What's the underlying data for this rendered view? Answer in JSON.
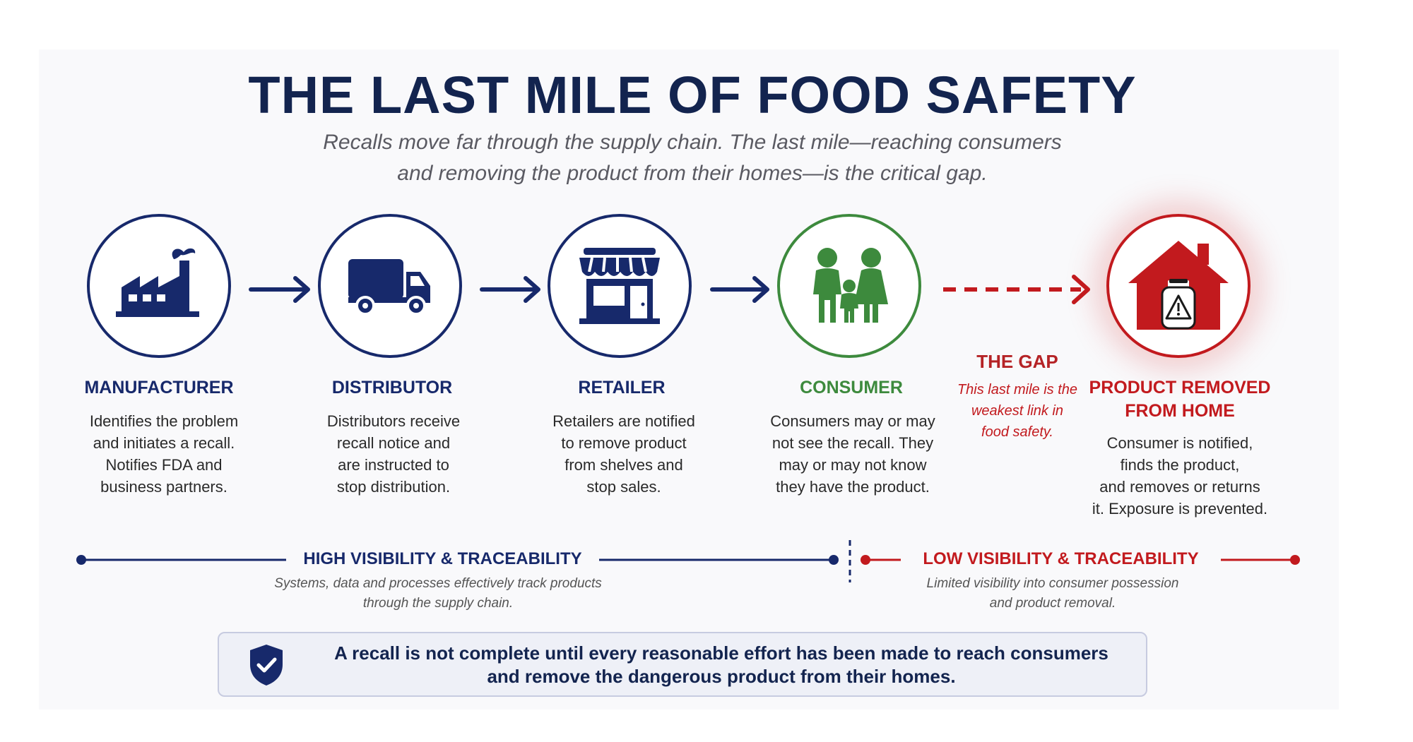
{
  "header": {
    "title": "THE LAST MILE OF FOOD SAFETY",
    "subtitle_line1": "Recalls move far through the supply chain. The last mile—reaching consumers",
    "subtitle_line2": "and removing the product from their homes—is the critical gap."
  },
  "steps": [
    {
      "title": "MANUFACTURER",
      "icon": "factory-icon",
      "lines": [
        "Identifies the problem",
        "and initiates a recall.",
        "Notifies FDA and",
        "business partners."
      ]
    },
    {
      "title": "DISTRIBUTOR",
      "icon": "truck-icon",
      "lines": [
        "Distributors receive",
        "recall notice and",
        "are instructed to",
        "stop distribution."
      ]
    },
    {
      "title": "RETAILER",
      "icon": "store-icon",
      "lines": [
        "Retailers are notified",
        "to remove product",
        "from shelves and",
        "stop sales."
      ]
    },
    {
      "title": "CONSUMER",
      "icon": "family-icon",
      "lines": [
        "Consumers may or may",
        "not see the recall. They",
        "may or may not know",
        "they have the product."
      ]
    },
    {
      "title_line1": "PRODUCT REMOVED",
      "title_line2": "FROM HOME",
      "icon": "house-warning-icon",
      "lines": [
        "Consumer is notified,",
        "finds the product,",
        "and removes or returns",
        "it. Exposure is prevented."
      ]
    }
  ],
  "gap": {
    "title": "THE GAP",
    "lines": [
      "This last mile is the",
      "weakest link in",
      "food safety."
    ]
  },
  "bands": {
    "high": {
      "label": "HIGH VISIBILITY & TRACEABILITY",
      "desc_line1": "Systems, data and processes effectively track products",
      "desc_line2": "through the supply chain."
    },
    "low": {
      "label": "LOW VISIBILITY & TRACEABILITY",
      "desc_line1": "Limited visibility into consumer possession",
      "desc_line2": "and product removal."
    }
  },
  "callout": {
    "icon": "shield-check-icon",
    "line1": "A recall is not complete until every reasonable effort has been made to reach consumers",
    "line2": "and remove the dangerous product from their homes."
  },
  "colors": {
    "navy": "#17296b",
    "green": "#3d8a3d",
    "red": "#c21a1e"
  }
}
